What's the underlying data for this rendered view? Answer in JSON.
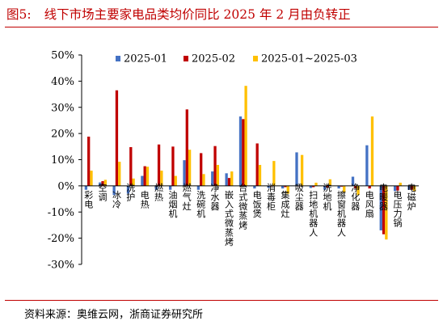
{
  "figure": {
    "number": "图5:",
    "title": "线下市场主要家电品类均价同比 2025 年 2 月由负转正"
  },
  "source": "资料来源：奥维云网，浙商证券研究所",
  "chart_data": {
    "type": "bar",
    "title": "",
    "xlabel": "",
    "ylabel": "",
    "ylim": [
      -30,
      50
    ],
    "yticks": [
      50,
      40,
      30,
      20,
      10,
      0,
      -10,
      -20,
      -30
    ],
    "ytick_labels": [
      "50%",
      "40%",
      "30%",
      "20%",
      "10%",
      "0%",
      "-10%",
      "-20%",
      "-30%"
    ],
    "grid": false,
    "legend_position": "top",
    "categories": [
      "彩电",
      "空调",
      "冰冷",
      "洗护",
      "电热",
      "燃热",
      "油烟机",
      "燃气灶",
      "洗碗机",
      "净水器",
      "嵌入式微蒸烤",
      "台式微蒸烤",
      "电饭煲",
      "消毒柜",
      "集成灶",
      "吸尘器",
      "扫地机器人",
      "洗地机",
      "擦窗机器人",
      "净化器",
      "电风扇",
      "电暖器",
      "电压力锅",
      "电磁炉"
    ],
    "series": [
      {
        "name": "2025-01",
        "color": "#4472c4",
        "values": [
          -1.5,
          1.3,
          -3.5,
          -3,
          3.8,
          -1.5,
          -1.5,
          9.8,
          -1.5,
          5.5,
          4.8,
          26.5,
          -1,
          -0.8,
          -1,
          12.8,
          -0.8,
          -1.5,
          -1,
          3.5,
          15.5,
          -17,
          -2,
          -1.5
        ]
      },
      {
        "name": "2025-02",
        "color": "#c00000",
        "values": [
          18.8,
          1.8,
          36.5,
          14.8,
          7.5,
          15.8,
          15,
          29.2,
          12.5,
          15.2,
          3,
          25.5,
          16.2,
          -0.3,
          -0.5,
          -0.2,
          -0.5,
          -0.5,
          -0.3,
          -1,
          -1,
          -18.5,
          -1.8,
          -1.5
        ]
      },
      {
        "name": "2025-01~2025-03",
        "color": "#ffc000",
        "values": [
          5.8,
          2.3,
          9.2,
          2.8,
          7.3,
          5.8,
          3.8,
          13.8,
          4.5,
          8,
          5.5,
          38.2,
          8,
          9.5,
          -3,
          11.8,
          1.2,
          2.5,
          -2.5,
          -3.5,
          26.5,
          -20.5,
          1.2,
          -2.2
        ]
      }
    ]
  }
}
